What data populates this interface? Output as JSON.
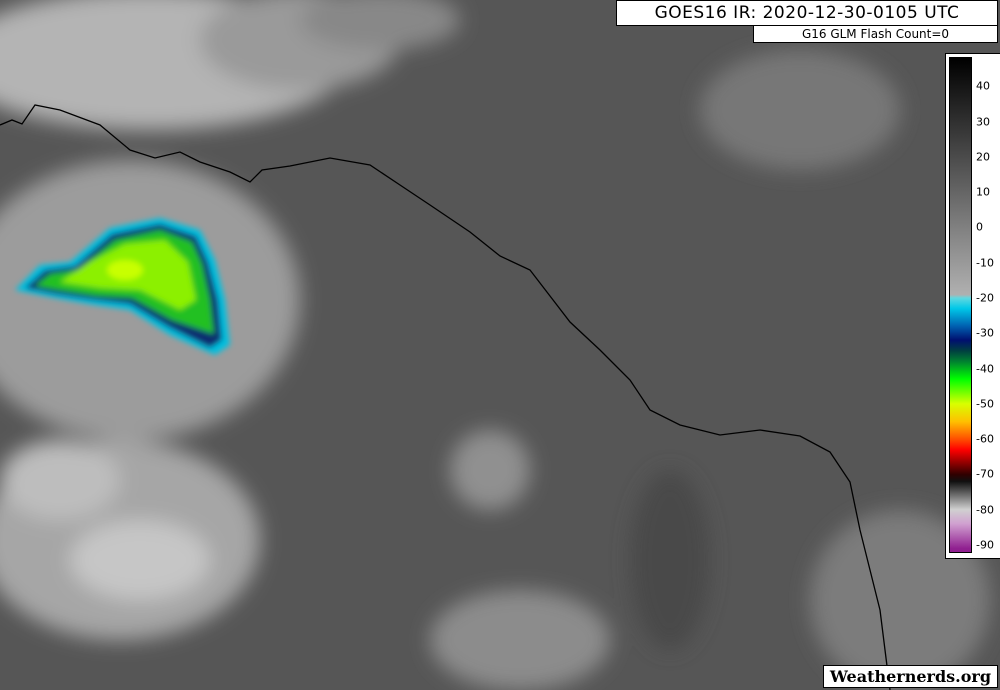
{
  "header": {
    "title": "GOES16 IR: 2020-12-30-0105 UTC",
    "subtitle": "G16 GLM Flash Count=0"
  },
  "colorbar": {
    "labels": [
      "40",
      "30",
      "20",
      "10",
      "0",
      "-10",
      "-20",
      "-30",
      "-40",
      "-50",
      "-60",
      "-70",
      "-80",
      "-90"
    ],
    "range": [
      48,
      -92
    ],
    "stops": [
      {
        "v": 48,
        "c": "#000000"
      },
      {
        "v": 0,
        "c": "#808080"
      },
      {
        "v": -19,
        "c": "#b0b0b0"
      },
      {
        "v": -20,
        "c": "#60d8e0"
      },
      {
        "v": -23,
        "c": "#00c8e8"
      },
      {
        "v": -28,
        "c": "#0060b0"
      },
      {
        "v": -32,
        "c": "#001070"
      },
      {
        "v": -35,
        "c": "#004040"
      },
      {
        "v": -38,
        "c": "#008030"
      },
      {
        "v": -43,
        "c": "#00ff00"
      },
      {
        "v": -50,
        "c": "#d8ff00"
      },
      {
        "v": -55,
        "c": "#ffc000"
      },
      {
        "v": -60,
        "c": "#ff5000"
      },
      {
        "v": -63,
        "c": "#ff0000"
      },
      {
        "v": -70,
        "c": "#300000"
      },
      {
        "v": -72,
        "c": "#101010"
      },
      {
        "v": -80,
        "c": "#d0d0d0"
      },
      {
        "v": -84,
        "c": "#d0a0d0"
      },
      {
        "v": -91,
        "c": "#902090"
      }
    ]
  },
  "credit": "Weathernerds.org"
}
